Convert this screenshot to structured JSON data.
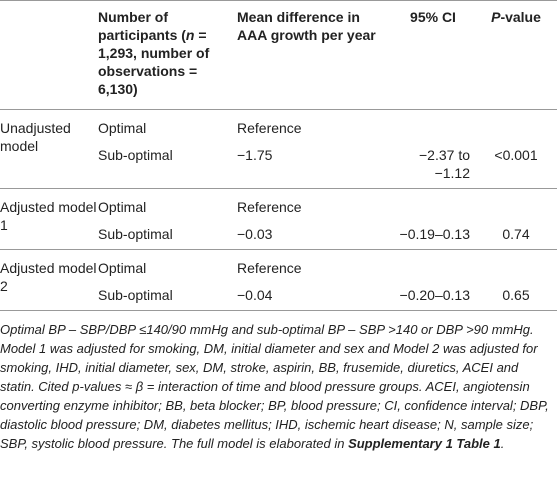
{
  "table": {
    "header": [
      [],
      [
        {
          "text": "Number of participants ("
        },
        {
          "text": "n",
          "italic": true
        },
        {
          "text": " = 1,293, number of observations = 6,130)"
        }
      ],
      [
        {
          "text": "Mean difference in AAA growth per year"
        }
      ],
      [
        {
          "text": "95% CI"
        }
      ],
      [
        {
          "text": "P",
          "italic": true
        },
        {
          "text": "-value"
        }
      ]
    ],
    "groups": [
      {
        "label": "Unadjusted model",
        "rows": [
          [
            "Optimal",
            "Reference"
          ],
          [
            "Sub-optimal",
            "−1.75",
            "−2.37 to −1.12",
            "<0.001"
          ]
        ]
      },
      {
        "label": "Adjusted model 1",
        "rows": [
          [
            "Optimal",
            "Reference"
          ],
          [
            "Sub-optimal",
            "−0.03",
            "−0.19–0.13",
            "0.74"
          ]
        ]
      },
      {
        "label": "Adjusted model 2",
        "rows": [
          [
            "Optimal",
            "Reference"
          ],
          [
            "Sub-optimal",
            "−0.04",
            "−0.20–0.13",
            "0.65"
          ]
        ]
      }
    ],
    "footnote": [
      {
        "text": "Optimal BP – SBP/DBP ≤140/90 mmHg and sub-optimal BP – SBP >140 or DBP >90 mmHg. Model 1 was adjusted for smoking, DM, initial diameter and sex and Model 2 was adjusted for smoking, IHD, initial diameter, sex, DM, stroke, aspirin, BB, frusemide, diuretics, ACEI and statin. Cited p-values ≈ β = interaction of time and blood pressure groups. ACEI, angiotensin converting enzyme inhibitor; BB, beta blocker; BP, blood pressure; CI, confidence interval; DBP, diastolic blood pressure; DM, diabetes mellitus; IHD, ischemic heart disease; N, sample size; SBP, systolic blood pressure. The full model is elaborated in "
      },
      {
        "text": "Supplementary 1 Table 1",
        "bold": true
      },
      {
        "text": "."
      }
    ]
  }
}
